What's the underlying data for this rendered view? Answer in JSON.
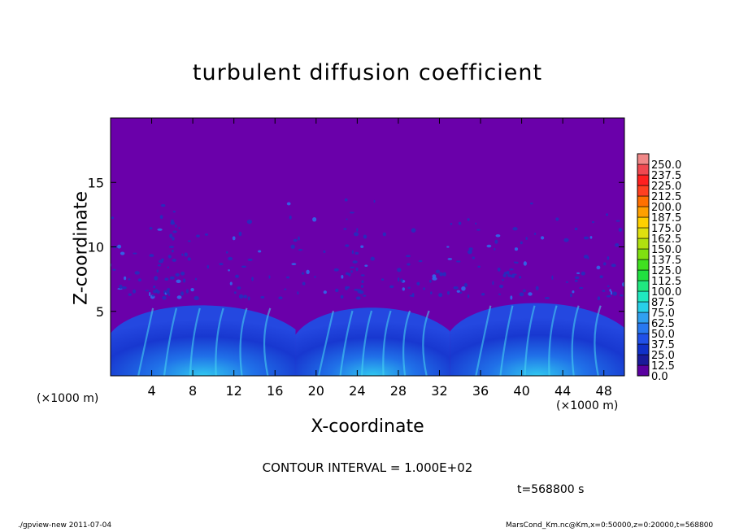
{
  "chart_data": {
    "type": "heatmap",
    "title": "turbulent diffusion coefficient",
    "xlabel": "X-coordinate",
    "ylabel": "Z-coordinate",
    "x_unit": "(×1000 m)",
    "xlim": [
      0,
      50
    ],
    "ylim": [
      0,
      20
    ],
    "x_ticks": [
      4,
      8,
      12,
      16,
      20,
      24,
      28,
      32,
      36,
      40,
      44,
      48
    ],
    "y_ticks": [
      5,
      10,
      15
    ],
    "colorbar_levels": [
      "0.0",
      "12.5",
      "25.0",
      "37.5",
      "50.0",
      "62.5",
      "75.0",
      "87.5",
      "100.0",
      "112.5",
      "125.0",
      "137.5",
      "150.0",
      "162.5",
      "175.0",
      "187.5",
      "200.0",
      "212.5",
      "225.0",
      "237.5",
      "250.0"
    ],
    "colorbar_colors": [
      "#5a00a0",
      "#1a1a9a",
      "#1030c8",
      "#2050e8",
      "#2878f0",
      "#30a0f0",
      "#28d0e8",
      "#20e8c0",
      "#20e880",
      "#20e040",
      "#40e020",
      "#80e010",
      "#b0e010",
      "#e0e010",
      "#ffd000",
      "#ffa000",
      "#ff7000",
      "#ff4020",
      "#ff2020",
      "#f04850",
      "#f08888"
    ],
    "background_value_color": "#6a00aa",
    "plumes": [
      {
        "x_start": 0.0,
        "x_end": 18.0,
        "top": 6.0
      },
      {
        "x_start": 18.0,
        "x_end": 33.0,
        "top": 5.8
      },
      {
        "x_start": 33.0,
        "x_end": 50.0,
        "top": 6.2
      }
    ]
  },
  "contour_interval": "CONTOUR INTERVAL = 1.000E+02",
  "time_label": "t=568800 s",
  "footer_left": "./gpview-new  2011-07-04",
  "footer_right": "MarsCond_Km.nc@Km,x=0:50000,z=0:20000,t=568800"
}
